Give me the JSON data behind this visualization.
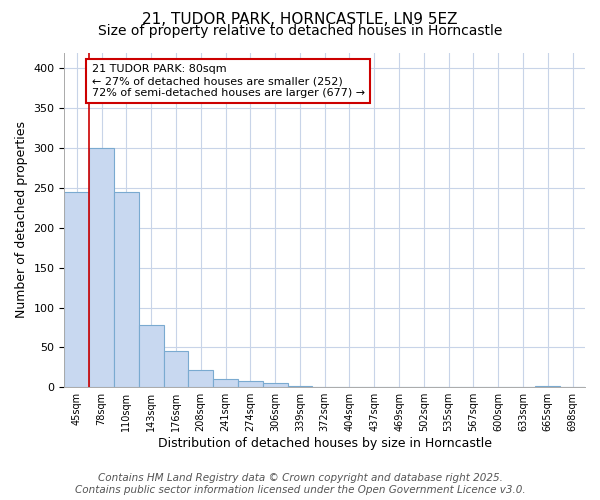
{
  "title1": "21, TUDOR PARK, HORNCASTLE, LN9 5EZ",
  "title2": "Size of property relative to detached houses in Horncastle",
  "xlabel": "Distribution of detached houses by size in Horncastle",
  "ylabel": "Number of detached properties",
  "categories": [
    "45sqm",
    "78sqm",
    "110sqm",
    "143sqm",
    "176sqm",
    "208sqm",
    "241sqm",
    "274sqm",
    "306sqm",
    "339sqm",
    "372sqm",
    "404sqm",
    "437sqm",
    "469sqm",
    "502sqm",
    "535sqm",
    "567sqm",
    "600sqm",
    "633sqm",
    "665sqm",
    "698sqm"
  ],
  "values": [
    245,
    300,
    245,
    78,
    45,
    22,
    10,
    8,
    5,
    2,
    0,
    0,
    0,
    0,
    0,
    0,
    0,
    0,
    0,
    2,
    0
  ],
  "bar_color": "#c8d8f0",
  "bar_edge_color": "#7aaad0",
  "marker_index": 1,
  "marker_color": "#cc0000",
  "annotation_text": "21 TUDOR PARK: 80sqm\n← 27% of detached houses are smaller (252)\n72% of semi-detached houses are larger (677) →",
  "annotation_box_color": "#ffffff",
  "annotation_box_edge": "#cc0000",
  "footer_text": "Contains HM Land Registry data © Crown copyright and database right 2025.\nContains public sector information licensed under the Open Government Licence v3.0.",
  "ylim": [
    0,
    420
  ],
  "background_color": "#ffffff",
  "plot_bg_color": "#ffffff",
  "grid_color": "#c8d4e8",
  "title1_fontsize": 11,
  "title2_fontsize": 10,
  "footer_fontsize": 7.5,
  "ylabel_fontsize": 9,
  "xlabel_fontsize": 9
}
